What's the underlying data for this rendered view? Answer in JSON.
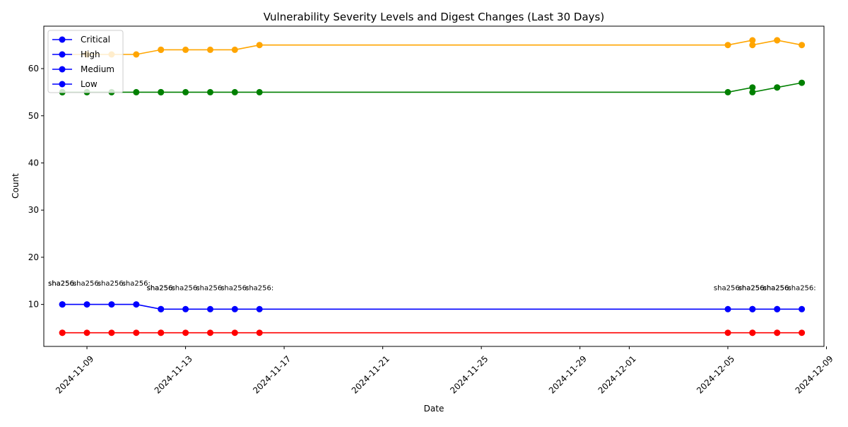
{
  "chart_data": {
    "type": "line",
    "title": "Vulnerability Severity Levels and Digest Changes (Last 30 Days)",
    "xlabel": "Date",
    "ylabel": "Count",
    "x_type": "date",
    "xlim": [
      "2024-11-07",
      "2024-12-09"
    ],
    "ylim": [
      1,
      69
    ],
    "x_ticks": [
      "2024-11-09",
      "2024-11-13",
      "2024-11-17",
      "2024-11-21",
      "2024-11-25",
      "2024-11-29",
      "2024-12-01",
      "2024-12-05",
      "2024-12-09"
    ],
    "y_ticks": [
      10,
      20,
      30,
      40,
      50,
      60
    ],
    "grid": false,
    "legend_position": "top-left",
    "legend": [
      {
        "label": "Critical",
        "color": "#0000ff"
      },
      {
        "label": "High",
        "color": "#0000ff"
      },
      {
        "label": "Medium",
        "color": "#0000ff"
      },
      {
        "label": "Low",
        "color": "#0000ff"
      }
    ],
    "x": [
      "2024-11-08",
      "2024-11-08",
      "2024-11-09",
      "2024-11-10",
      "2024-11-11",
      "2024-11-12",
      "2024-11-12",
      "2024-11-13",
      "2024-11-14",
      "2024-11-15",
      "2024-11-16",
      "2024-12-05",
      "2024-12-06",
      "2024-12-06",
      "2024-12-07",
      "2024-12-07",
      "2024-12-08"
    ],
    "series": [
      {
        "color": "#ff0000",
        "values": [
          4,
          4,
          4,
          4,
          4,
          4,
          4,
          4,
          4,
          4,
          4,
          4,
          4,
          4,
          4,
          4,
          4
        ]
      },
      {
        "color": "#0000ff",
        "values": [
          10,
          10,
          10,
          10,
          10,
          9,
          9,
          9,
          9,
          9,
          9,
          9,
          9,
          9,
          9,
          9,
          9
        ]
      },
      {
        "color": "#ffa500",
        "values": [
          63,
          63,
          63,
          63,
          63,
          64,
          64,
          64,
          64,
          64,
          65,
          65,
          66,
          65,
          66,
          66,
          65
        ]
      },
      {
        "color": "#008000",
        "values": [
          55,
          55,
          55,
          55,
          55,
          55,
          55,
          55,
          55,
          55,
          55,
          55,
          56,
          55,
          56,
          56,
          57
        ]
      }
    ],
    "annotations": [
      {
        "x": "2024-11-08",
        "y": 14,
        "text": "sha256:"
      },
      {
        "x": "2024-11-08",
        "y": 14,
        "text": "sha256:"
      },
      {
        "x": "2024-11-09",
        "y": 14,
        "text": "sha256:"
      },
      {
        "x": "2024-11-10",
        "y": 14,
        "text": "sha256:"
      },
      {
        "x": "2024-11-11",
        "y": 14,
        "text": "sha256:"
      },
      {
        "x": "2024-11-12",
        "y": 13,
        "text": "sha256:"
      },
      {
        "x": "2024-11-12",
        "y": 13,
        "text": "sha256:"
      },
      {
        "x": "2024-11-13",
        "y": 13,
        "text": "sha256:"
      },
      {
        "x": "2024-11-14",
        "y": 13,
        "text": "sha256:"
      },
      {
        "x": "2024-11-15",
        "y": 13,
        "text": "sha256:"
      },
      {
        "x": "2024-11-16",
        "y": 13,
        "text": "sha256:"
      },
      {
        "x": "2024-12-05",
        "y": 13,
        "text": "sha256:"
      },
      {
        "x": "2024-12-06",
        "y": 13,
        "text": "sha256:"
      },
      {
        "x": "2024-12-06",
        "y": 13,
        "text": "sha256:"
      },
      {
        "x": "2024-12-07",
        "y": 13,
        "text": "sha256:"
      },
      {
        "x": "2024-12-07",
        "y": 13,
        "text": "sha256:"
      },
      {
        "x": "2024-12-08",
        "y": 13,
        "text": "sha256:"
      }
    ]
  }
}
